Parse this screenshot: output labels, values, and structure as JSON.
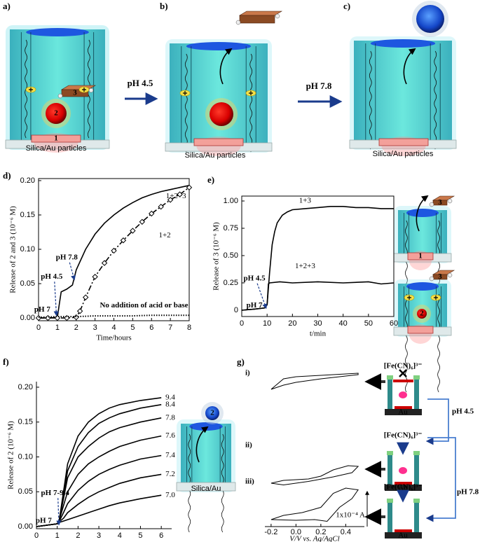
{
  "panels": {
    "a": "a)",
    "b": "b)",
    "c": "c)",
    "d": "d)",
    "e": "e)",
    "f": "f)",
    "g": "g)"
  },
  "scheme": {
    "brick": "3",
    "ball": "2",
    "bar": "1",
    "support": "Silica/Au particles",
    "step1": "pH 4.5",
    "step2": "pH 7.8"
  },
  "inset_e": {
    "brick": "3",
    "bar": "1",
    "ball": "2"
  },
  "inset_f": {
    "ball": "2",
    "support": "Silica/Au"
  },
  "inset_g": {
    "probe": "[Fe(CN)₆]³⁻",
    "electrode": "Au",
    "step1": "pH 4.5",
    "step2": "pH 7.8"
  },
  "chart_data": [
    {
      "type": "line",
      "xlabel": "Time/hours",
      "ylabel": "Release of 2 and 3 (10⁻⁶ M)",
      "xlim": [
        0,
        8
      ],
      "ylim": [
        -0.004,
        0.203
      ],
      "xticks": [
        0,
        1,
        2,
        3,
        4,
        5,
        6,
        7,
        8
      ],
      "yticks": [
        {
          "value": 0,
          "label": "0.00"
        },
        0.05,
        {
          "value": 0.1,
          "label": "0.10"
        },
        0.15,
        {
          "value": 0.2,
          "label": "0.20"
        }
      ],
      "annotations": [
        "pH 7",
        "pH 4.5",
        "pH 7.8"
      ],
      "series": [
        {
          "name": "1+2+3",
          "color": "#000000",
          "style": "solid",
          "x": [
            0,
            0.5,
            1.0,
            1.1,
            1.2,
            1.5,
            1.8,
            2.0,
            2.5,
            3,
            3.5,
            4,
            4.5,
            5,
            5.5,
            6,
            6.5,
            7,
            7.5,
            8
          ],
          "values": [
            0,
            0,
            0.001,
            0.02,
            0.038,
            0.042,
            0.048,
            0.07,
            0.1,
            0.122,
            0.138,
            0.15,
            0.16,
            0.168,
            0.175,
            0.18,
            0.184,
            0.187,
            0.19,
            0.193
          ]
        },
        {
          "name": "1+2",
          "color": "#000000",
          "style": "dashdot",
          "marker": "diamond",
          "x": [
            0,
            0.5,
            1,
            1.5,
            2,
            2.2,
            2.5,
            3,
            3.5,
            4,
            4.5,
            5,
            5.5,
            6,
            6.5,
            7,
            7.5,
            8
          ],
          "values": [
            0,
            0,
            0,
            0,
            0.001,
            0.01,
            0.03,
            0.06,
            0.08,
            0.098,
            0.113,
            0.127,
            0.14,
            0.152,
            0.162,
            0.172,
            0.18,
            0.19
          ]
        },
        {
          "name": "No addition of acid or base",
          "color": "#000000",
          "style": "dotted",
          "x": [
            0,
            1,
            2,
            3,
            4,
            5,
            6,
            7,
            8
          ],
          "values": [
            0.001,
            0.002,
            0.002,
            0.003,
            0.003,
            0.003,
            0.004,
            0.004,
            0.004
          ]
        }
      ]
    },
    {
      "type": "line",
      "xlabel": "t/min",
      "ylabel": "Release of 3 (10⁻⁶ M)",
      "xlim": [
        0,
        60
      ],
      "ylim": [
        -0.058,
        1.045
      ],
      "xticks": [
        0,
        10,
        20,
        30,
        40,
        50,
        60
      ],
      "yticks": [
        0,
        0.25,
        {
          "value": 0.5,
          "label": "0.50"
        },
        0.75,
        {
          "value": 1,
          "label": "1.00"
        }
      ],
      "annotations": [
        "pH 4.5",
        "pH 7"
      ],
      "series": [
        {
          "name": "1+3",
          "color": "#000000",
          "style": "solid",
          "x": [
            0,
            5,
            9,
            10,
            11,
            12,
            13,
            14,
            16,
            18,
            20,
            25,
            30,
            35,
            40,
            45,
            50,
            55,
            60
          ],
          "values": [
            0,
            0.01,
            0.02,
            0.05,
            0.35,
            0.6,
            0.72,
            0.8,
            0.87,
            0.9,
            0.92,
            0.93,
            0.94,
            0.95,
            0.95,
            0.94,
            0.94,
            0.93,
            0.93
          ]
        },
        {
          "name": "1+2+3",
          "color": "#000000",
          "style": "solid",
          "x": [
            0,
            5,
            9,
            10,
            10.5,
            11,
            15,
            20,
            30,
            40,
            50,
            55,
            60
          ],
          "values": [
            0,
            0.01,
            0.02,
            0.05,
            0.24,
            0.25,
            0.26,
            0.25,
            0.26,
            0.25,
            0.26,
            0.24,
            0.25
          ]
        }
      ]
    },
    {
      "type": "line",
      "xlabel": "Time/hours",
      "ylabel": "Release of 2 (10⁻⁶ M)",
      "xlim": [
        0,
        6.5
      ],
      "ylim": [
        -0.003,
        0.208
      ],
      "xticks": [
        0,
        1,
        2,
        3,
        4,
        5,
        6
      ],
      "yticks": [
        {
          "value": 0,
          "label": "0.00"
        },
        0.05,
        {
          "value": 0.1,
          "label": "0.10"
        },
        0.15,
        {
          "value": 0.2,
          "label": "0.20"
        }
      ],
      "annotations": [
        "pH 7-9.4",
        "pH 7"
      ],
      "x": [
        0,
        0.5,
        1,
        1.1,
        1.3,
        1.5,
        2,
        2.5,
        3,
        3.5,
        4,
        5,
        6
      ],
      "series": [
        {
          "name": "9.4",
          "color": "#000000",
          "style": "solid",
          "values": [
            0,
            0.002,
            0.004,
            0.01,
            0.05,
            0.09,
            0.13,
            0.15,
            0.162,
            0.17,
            0.175,
            0.181,
            0.185
          ]
        },
        {
          "name": "8.4",
          "color": "#000000",
          "style": "solid",
          "values": [
            0,
            0.002,
            0.004,
            0.01,
            0.045,
            0.08,
            0.115,
            0.135,
            0.148,
            0.156,
            0.162,
            0.17,
            0.175
          ]
        },
        {
          "name": "7.8",
          "color": "#000000",
          "style": "solid",
          "values": [
            0,
            0.002,
            0.004,
            0.01,
            0.04,
            0.07,
            0.1,
            0.115,
            0.127,
            0.136,
            0.142,
            0.15,
            0.156
          ]
        },
        {
          "name": "7.6",
          "color": "#000000",
          "style": "solid",
          "values": [
            0,
            0.002,
            0.004,
            0.01,
            0.03,
            0.05,
            0.075,
            0.09,
            0.1,
            0.108,
            0.115,
            0.124,
            0.13
          ]
        },
        {
          "name": "7.4",
          "color": "#000000",
          "style": "solid",
          "values": [
            0,
            0.002,
            0.004,
            0.008,
            0.02,
            0.033,
            0.052,
            0.065,
            0.075,
            0.082,
            0.088,
            0.097,
            0.102
          ]
        },
        {
          "name": "7.2",
          "color": "#000000",
          "style": "solid",
          "values": [
            0,
            0.002,
            0.004,
            0.007,
            0.012,
            0.02,
            0.032,
            0.042,
            0.05,
            0.056,
            0.062,
            0.07,
            0.075
          ]
        },
        {
          "name": "7.0",
          "color": "#000000",
          "style": "solid",
          "values": [
            0,
            0.002,
            0.004,
            0.006,
            0.008,
            0.01,
            0.015,
            0.02,
            0.025,
            0.03,
            0.034,
            0.04,
            0.045
          ]
        }
      ]
    },
    {
      "type": "cv",
      "xlabel": "V/V  vs. Ag/AgCl",
      "xlim": [
        -0.25,
        0.55
      ],
      "xticks": [
        -0.2,
        {
          "value": 0,
          "label": "0.0"
        },
        0.2,
        0.4
      ],
      "scalebar": {
        "value": 1,
        "label": "1x10⁻⁴ A"
      },
      "series": [
        {
          "name": "i)",
          "color": "#000000",
          "x": [
            -0.2,
            -0.1,
            0,
            0.2,
            0.5,
            0.5,
            0.2,
            0,
            -0.1,
            -0.2
          ],
          "values": [
            0,
            0.3,
            0.36,
            0.4,
            0.46,
            0.42,
            0.3,
            0.2,
            0.12,
            0
          ]
        },
        {
          "name": "ii)",
          "color": "#000000",
          "x": [
            -0.2,
            -0.1,
            0.1,
            0.2,
            0.3,
            0.42,
            0.5,
            0.45,
            0.3,
            0.1,
            -0.1,
            -0.2
          ],
          "values": [
            0,
            0.08,
            0.12,
            0.2,
            0.38,
            0.5,
            0.48,
            0.3,
            0.18,
            0.05,
            -0.05,
            0
          ]
        },
        {
          "name": "iii)",
          "color": "#000000",
          "x": [
            -0.2,
            -0.1,
            0.05,
            0.2,
            0.3,
            0.4,
            0.5,
            0.45,
            0.35,
            0.25,
            0.15,
            0,
            -0.2
          ],
          "values": [
            0,
            0.12,
            0.2,
            0.35,
            0.75,
            0.9,
            0.85,
            0.6,
            0.35,
            -0.05,
            0,
            -0.02,
            0
          ]
        }
      ]
    }
  ]
}
